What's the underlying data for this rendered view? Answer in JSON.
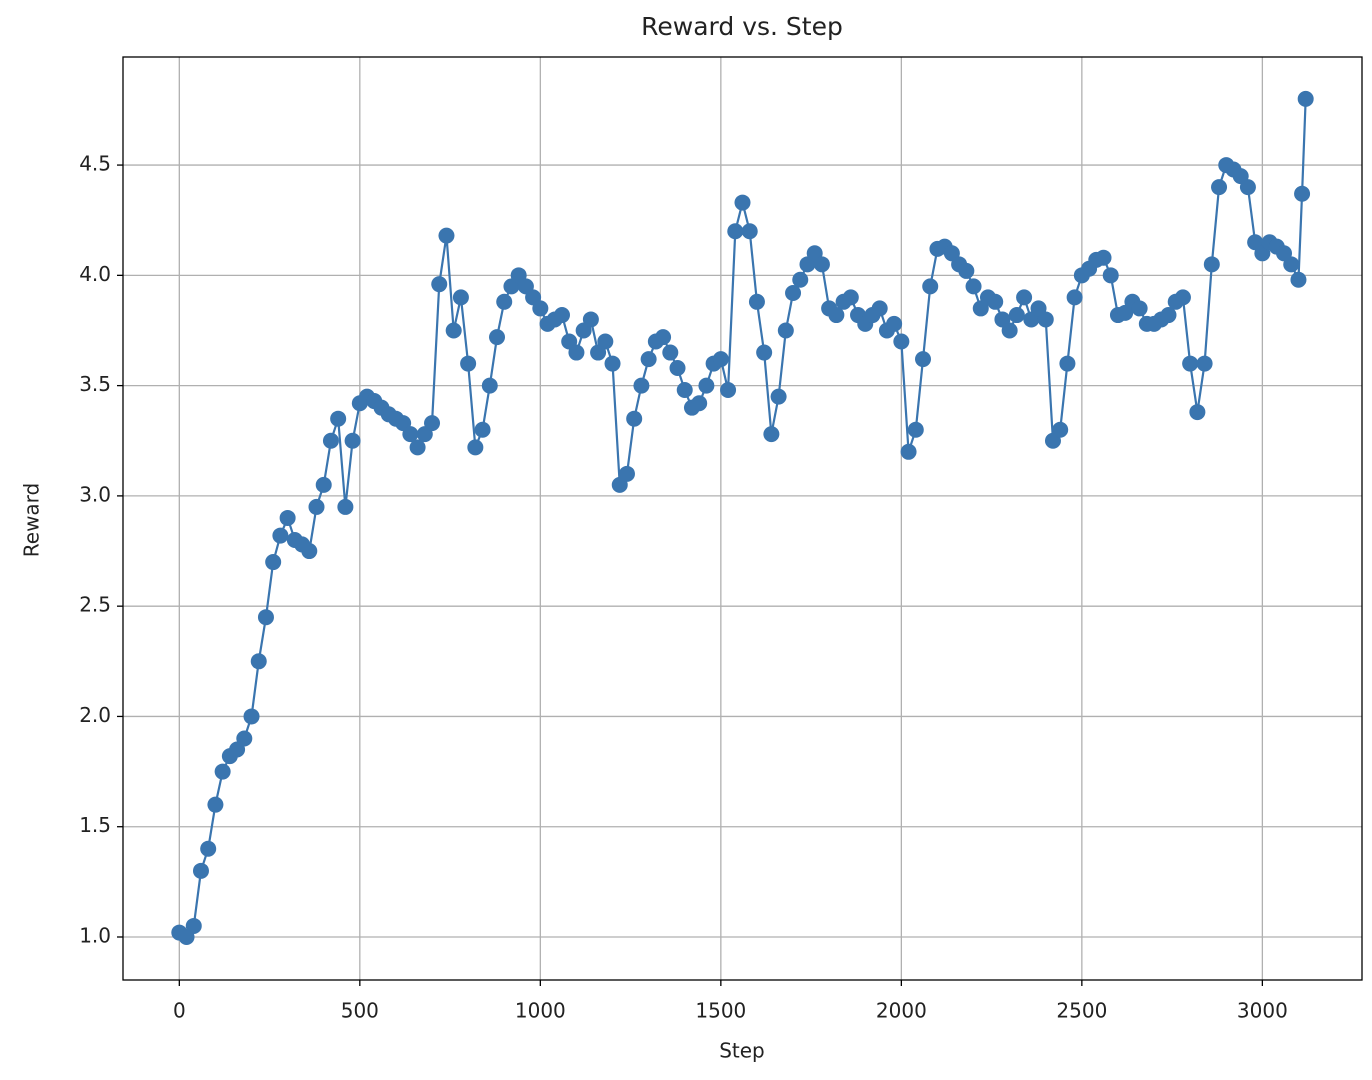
{
  "chart_data": {
    "type": "line",
    "title": "Reward vs. Step",
    "x_label": "Step",
    "y_label": "Reward",
    "x": [
      0,
      20,
      40,
      60,
      80,
      100,
      120,
      140,
      160,
      180,
      200,
      220,
      240,
      260,
      280,
      300,
      320,
      340,
      360,
      380,
      400,
      420,
      440,
      460,
      480,
      500,
      520,
      540,
      560,
      580,
      600,
      620,
      640,
      660,
      680,
      700,
      720,
      740,
      760,
      780,
      800,
      820,
      840,
      860,
      880,
      900,
      920,
      940,
      960,
      980,
      1000,
      1020,
      1040,
      1060,
      1080,
      1100,
      1120,
      1140,
      1160,
      1180,
      1200,
      1220,
      1240,
      1260,
      1280,
      1300,
      1320,
      1340,
      1360,
      1380,
      1400,
      1420,
      1440,
      1460,
      1480,
      1500,
      1520,
      1540,
      1560,
      1580,
      1600,
      1620,
      1640,
      1660,
      1680,
      1700,
      1720,
      1740,
      1760,
      1780,
      1800,
      1820,
      1840,
      1860,
      1880,
      1900,
      1920,
      1940,
      1960,
      1980,
      2000,
      2020,
      2040,
      2060,
      2080,
      2100,
      2120,
      2140,
      2160,
      2180,
      2200,
      2220,
      2240,
      2260,
      2280,
      2300,
      2320,
      2340,
      2360,
      2380,
      2400,
      2420,
      2440,
      2460,
      2480,
      2500,
      2520,
      2540,
      2560,
      2580,
      2600,
      2620,
      2640,
      2660,
      2680,
      2700,
      2720,
      2740,
      2760,
      2780,
      2800,
      2820,
      2840,
      2860,
      2880,
      2900,
      2920,
      2940,
      2960,
      2980,
      3000,
      3020,
      3040,
      3060,
      3080,
      3100,
      3110,
      3120
    ],
    "series": [
      {
        "name": "Reward",
        "color": "#3a75af",
        "values": [
          1.02,
          1.0,
          1.05,
          1.3,
          1.4,
          1.6,
          1.75,
          1.82,
          1.85,
          1.9,
          2.0,
          2.25,
          2.45,
          2.7,
          2.82,
          2.9,
          2.8,
          2.78,
          2.75,
          2.95,
          3.05,
          3.25,
          3.35,
          2.95,
          3.25,
          3.42,
          3.45,
          3.43,
          3.4,
          3.37,
          3.35,
          3.33,
          3.28,
          3.22,
          3.28,
          3.33,
          3.96,
          4.18,
          3.75,
          3.9,
          3.6,
          3.22,
          3.3,
          3.5,
          3.72,
          3.88,
          3.95,
          4.0,
          3.95,
          3.9,
          3.85,
          3.78,
          3.8,
          3.82,
          3.7,
          3.65,
          3.75,
          3.8,
          3.65,
          3.7,
          3.6,
          3.05,
          3.1,
          3.35,
          3.5,
          3.62,
          3.7,
          3.72,
          3.65,
          3.58,
          3.48,
          3.4,
          3.42,
          3.5,
          3.6,
          3.62,
          3.48,
          4.2,
          4.33,
          4.2,
          3.88,
          3.65,
          3.28,
          3.45,
          3.75,
          3.92,
          3.98,
          4.05,
          4.1,
          4.05,
          3.85,
          3.82,
          3.88,
          3.9,
          3.82,
          3.78,
          3.82,
          3.85,
          3.75,
          3.78,
          3.7,
          3.2,
          3.3,
          3.62,
          3.95,
          4.12,
          4.13,
          4.1,
          4.05,
          4.02,
          3.95,
          3.85,
          3.9,
          3.88,
          3.8,
          3.75,
          3.82,
          3.9,
          3.8,
          3.85,
          3.8,
          3.25,
          3.3,
          3.6,
          3.9,
          4.0,
          4.03,
          4.07,
          4.08,
          4.0,
          3.82,
          3.83,
          3.88,
          3.85,
          3.78,
          3.78,
          3.8,
          3.82,
          3.88,
          3.9,
          3.6,
          3.38,
          3.6,
          4.05,
          4.4,
          4.5,
          4.48,
          4.45,
          4.4,
          4.15,
          4.1,
          4.15,
          4.13,
          4.1,
          4.05,
          3.98,
          4.37,
          4.8
        ]
      }
    ],
    "xlim": [
      -156,
      3276
    ],
    "ylim": [
      0.805,
      4.99
    ],
    "xticks": [
      0,
      500,
      1000,
      1500,
      2000,
      2500,
      3000
    ],
    "yticks": [
      {
        "value": 1,
        "label": "1.0"
      },
      {
        "value": 1.5,
        "label": "1.5"
      },
      {
        "value": 2,
        "label": "2.0"
      },
      {
        "value": 2.5,
        "label": "2.5"
      },
      {
        "value": 3,
        "label": "3.0"
      },
      {
        "value": 3.5,
        "label": "3.5"
      },
      {
        "value": 4,
        "label": "4.0"
      },
      {
        "value": 4.5,
        "label": "4.5"
      }
    ],
    "grid": true,
    "markers": true
  }
}
